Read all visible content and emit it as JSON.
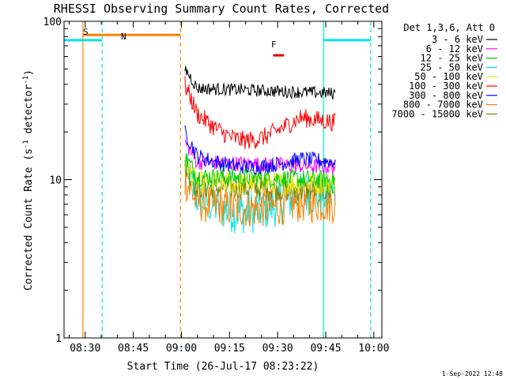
{
  "chart_data": {
    "type": "line",
    "title": "RHESSI Observing Summary Count Rates, Corrected",
    "xlabel": "Start Time (26-Jul-17 08:23:22)",
    "ylabel": "Corrected Count Rate (s⁻¹ detector⁻¹)",
    "ylabel_parts": [
      "Corrected Count Rate (s",
      "-1",
      " detector",
      "-1",
      ")"
    ],
    "yscale": "log",
    "ylim": [
      1,
      100
    ],
    "xlim_minutes": [
      503.4,
      602.5
    ],
    "x_ticks": [
      {
        "label": "08:30",
        "minutes": 510
      },
      {
        "label": "08:45",
        "minutes": 525
      },
      {
        "label": "09:00",
        "minutes": 540
      },
      {
        "label": "09:15",
        "minutes": 555
      },
      {
        "label": "09:30",
        "minutes": 570
      },
      {
        "label": "09:45",
        "minutes": 585
      },
      {
        "label": "10:00",
        "minutes": 600
      }
    ],
    "y_ticks": [
      {
        "label": "1",
        "value": 1
      },
      {
        "label": "10",
        "value": 10
      },
      {
        "label": "100",
        "value": 100
      }
    ],
    "legend_header": "Det 1,3,6, Att 0",
    "legend_position": "top-right",
    "series": [
      {
        "name": "3 - 6 keV",
        "color": "#000000",
        "level": 38,
        "end_level": 35,
        "noise": 0.08,
        "mid_dip": 0
      },
      {
        "name": "6 - 12 keV",
        "color": "#ff00ff",
        "level": 13,
        "end_level": 12,
        "noise": 0.1,
        "mid_dip": 0
      },
      {
        "name": "12 - 25 keV",
        "color": "#00cc00",
        "level": 10.5,
        "end_level": 10,
        "noise": 0.12,
        "mid_dip": 0
      },
      {
        "name": "25 - 50 keV",
        "color": "#00e5e5",
        "level": 8.5,
        "end_level": 8,
        "noise": 0.28,
        "mid_dip": 0.25
      },
      {
        "name": "50 - 100 keV",
        "color": "#e5e500",
        "level": 9.5,
        "end_level": 9.5,
        "noise": 0.15,
        "mid_dip": 0
      },
      {
        "name": "100 - 300 keV",
        "color": "#ff0000",
        "level": 30,
        "end_level": 23,
        "noise": 0.12,
        "mid_dip": 0.35
      },
      {
        "name": "300 - 800 keV",
        "color": "#0000ff",
        "level": 15,
        "end_level": 13,
        "noise": 0.1,
        "mid_dip": 0.15
      },
      {
        "name": "800 - 7000 keV",
        "color": "#ff8000",
        "level": 7.5,
        "end_level": 7,
        "noise": 0.25,
        "mid_dip": 0.1
      },
      {
        "name": "7000 - 15000 keV",
        "color": "#808000",
        "level": 9,
        "end_level": 8.5,
        "noise": 0.15,
        "mid_dip": 0
      }
    ],
    "data_span_minutes": [
      541.1,
      588.0
    ],
    "annotations": [
      {
        "label": "S",
        "color": "#ff8000",
        "x_minutes": 509.3
      },
      {
        "label": "N",
        "color": "#00e5e5",
        "x_minutes": 515.8
      },
      {
        "label": "F",
        "color": "#e00000",
        "x_minutes": 567.4
      }
    ],
    "flag_bars": [
      {
        "name": "SAA",
        "color": "#ff8000",
        "y_value": 82,
        "from_minutes": 509.3,
        "to_minutes": 539.7
      },
      {
        "name": "Night",
        "color": "#00e5e5",
        "y_value": 76,
        "from_minutes": 503.4,
        "to_minutes": 515.3
      },
      {
        "name": "Night",
        "color": "#00e5e5",
        "y_value": 76,
        "from_minutes": 584.3,
        "to_minutes": 599.0
      },
      {
        "name": "Flare",
        "color": "#e00000",
        "y_value": 61,
        "from_minutes": 568.6,
        "to_minutes": 572.0
      }
    ],
    "vertical_markers": [
      {
        "name": "saa-start",
        "color": "#ff8000",
        "style": "solid",
        "x_minutes": 509.3
      },
      {
        "name": "saa-end",
        "color": "#ff8000",
        "style": "dashed",
        "x_minutes": 539.7
      },
      {
        "name": "night-end",
        "color": "#00e5e5",
        "style": "dashed",
        "x_minutes": 515.3
      },
      {
        "name": "night-start",
        "color": "#00e5e5",
        "style": "solid",
        "x_minutes": 584.3
      },
      {
        "name": "night-2-end",
        "color": "#00e5e5",
        "style": "dashed",
        "x_minutes": 599.0
      }
    ],
    "footer_date": "1-Sep-2022 12:48"
  }
}
